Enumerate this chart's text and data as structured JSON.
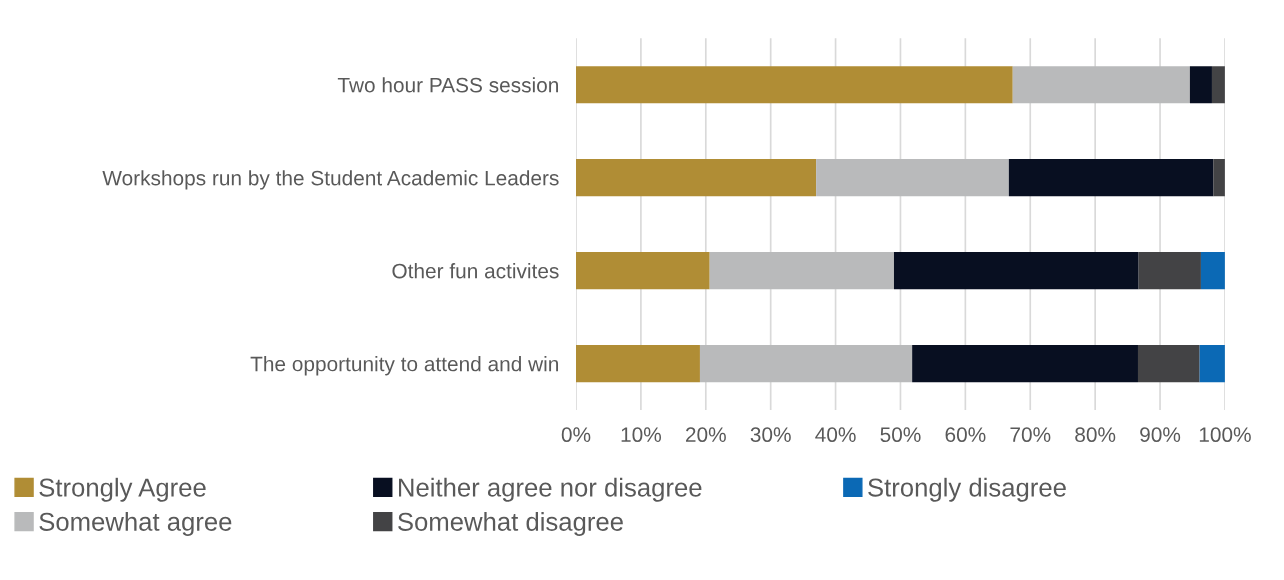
{
  "chart_data": {
    "type": "bar",
    "orientation": "horizontal",
    "stacked": true,
    "categories": [
      "Two hour PASS session",
      "Workshops run by the Student Academic Leaders",
      "Other fun activites",
      "The opportunity to attend and win"
    ],
    "series": [
      {
        "name": "Strongly Agree",
        "color": "#b08d35",
        "values": [
          67.3,
          37.0,
          20.6,
          19.1
        ]
      },
      {
        "name": "Somewhat agree",
        "color": "#b9babb",
        "values": [
          27.3,
          29.7,
          28.4,
          32.7
        ]
      },
      {
        "name": "Neither agree nor disagree",
        "color": "#080f21",
        "values": [
          3.4,
          31.5,
          37.7,
          34.8
        ]
      },
      {
        "name": "Somewhat disagree",
        "color": "#434345",
        "values": [
          2.0,
          1.8,
          9.6,
          9.5
        ]
      },
      {
        "name": "Strongly disagree",
        "color": "#0b69b5",
        "values": [
          0,
          0,
          3.7,
          3.9
        ]
      }
    ],
    "xlim": [
      0,
      100
    ],
    "xticks": [
      {
        "value": 0,
        "label": "0%"
      },
      {
        "value": 10,
        "label": "10%"
      },
      {
        "value": 20,
        "label": "20%"
      },
      {
        "value": 30,
        "label": "30%"
      },
      {
        "value": 40,
        "label": "40%"
      },
      {
        "value": 50,
        "label": "50%"
      },
      {
        "value": 60,
        "label": "60%"
      },
      {
        "value": 70,
        "label": "70%"
      },
      {
        "value": 80,
        "label": "80%"
      },
      {
        "value": 90,
        "label": "90%"
      },
      {
        "value": 100,
        "label": "100%"
      }
    ],
    "grid": "x",
    "legend": "bottom"
  }
}
